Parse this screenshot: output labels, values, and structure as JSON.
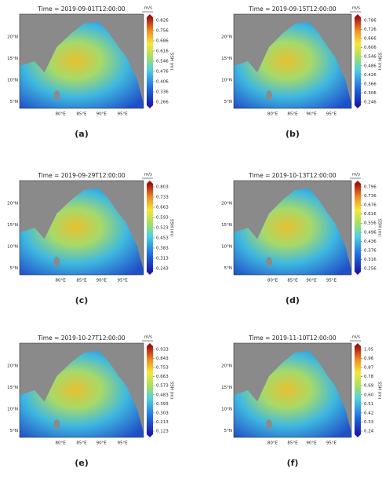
{
  "panels": [
    {
      "title": "Time = 2019-09-01T12:00:00",
      "label": "(a)",
      "unit": "m/s",
      "colorbar_label": "SSH (m)",
      "colorbar_ticks": [
        0.266,
        0.336,
        0.406,
        0.476,
        0.546,
        0.616,
        0.686,
        0.756,
        0.826
      ]
    },
    {
      "title": "Time = 2019-09-15T12:00:00",
      "label": "(b)",
      "unit": "m/s",
      "colorbar_label": "SSH (m)",
      "colorbar_ticks": [
        0.246,
        0.306,
        0.366,
        0.426,
        0.486,
        0.546,
        0.606,
        0.666,
        0.726,
        0.786
      ]
    },
    {
      "title": "Time = 2019-09-29T12:00:00",
      "label": "(c)",
      "unit": "m/s",
      "colorbar_label": "SSH (m)",
      "colorbar_ticks": [
        0.243,
        0.313,
        0.383,
        0.453,
        0.523,
        0.593,
        0.663,
        0.733,
        0.803
      ]
    },
    {
      "title": "Time = 2019-10-13T12:00:00",
      "label": "(d)",
      "unit": "m/s",
      "colorbar_label": "SSH (m)",
      "colorbar_ticks": [
        0.256,
        0.316,
        0.376,
        0.436,
        0.496,
        0.556,
        0.616,
        0.676,
        0.736,
        0.796
      ]
    },
    {
      "title": "Time = 2019-10-27T12:00:00",
      "label": "(e)",
      "unit": "m/s",
      "colorbar_label": "SSH (m)",
      "colorbar_ticks": [
        0.123,
        0.213,
        0.303,
        0.393,
        0.483,
        0.573,
        0.663,
        0.753,
        0.843,
        0.933
      ]
    },
    {
      "title": "Time = 2019-11-10T12:00:00",
      "label": "(f)",
      "unit": "m/s",
      "colorbar_label": "SSH (m)",
      "colorbar_ticks": [
        0.24,
        0.33,
        0.42,
        0.51,
        {
          "value": 0.6,
          "label": "0.60"
        },
        0.69,
        0.78,
        0.87,
        0.96,
        1.05
      ]
    }
  ],
  "lat_labels": [
    "20°N",
    "15°N",
    "10°N",
    "5°N"
  ],
  "lon_labels": [
    "80°E",
    "85°E",
    "90°E",
    "95°E"
  ]
}
